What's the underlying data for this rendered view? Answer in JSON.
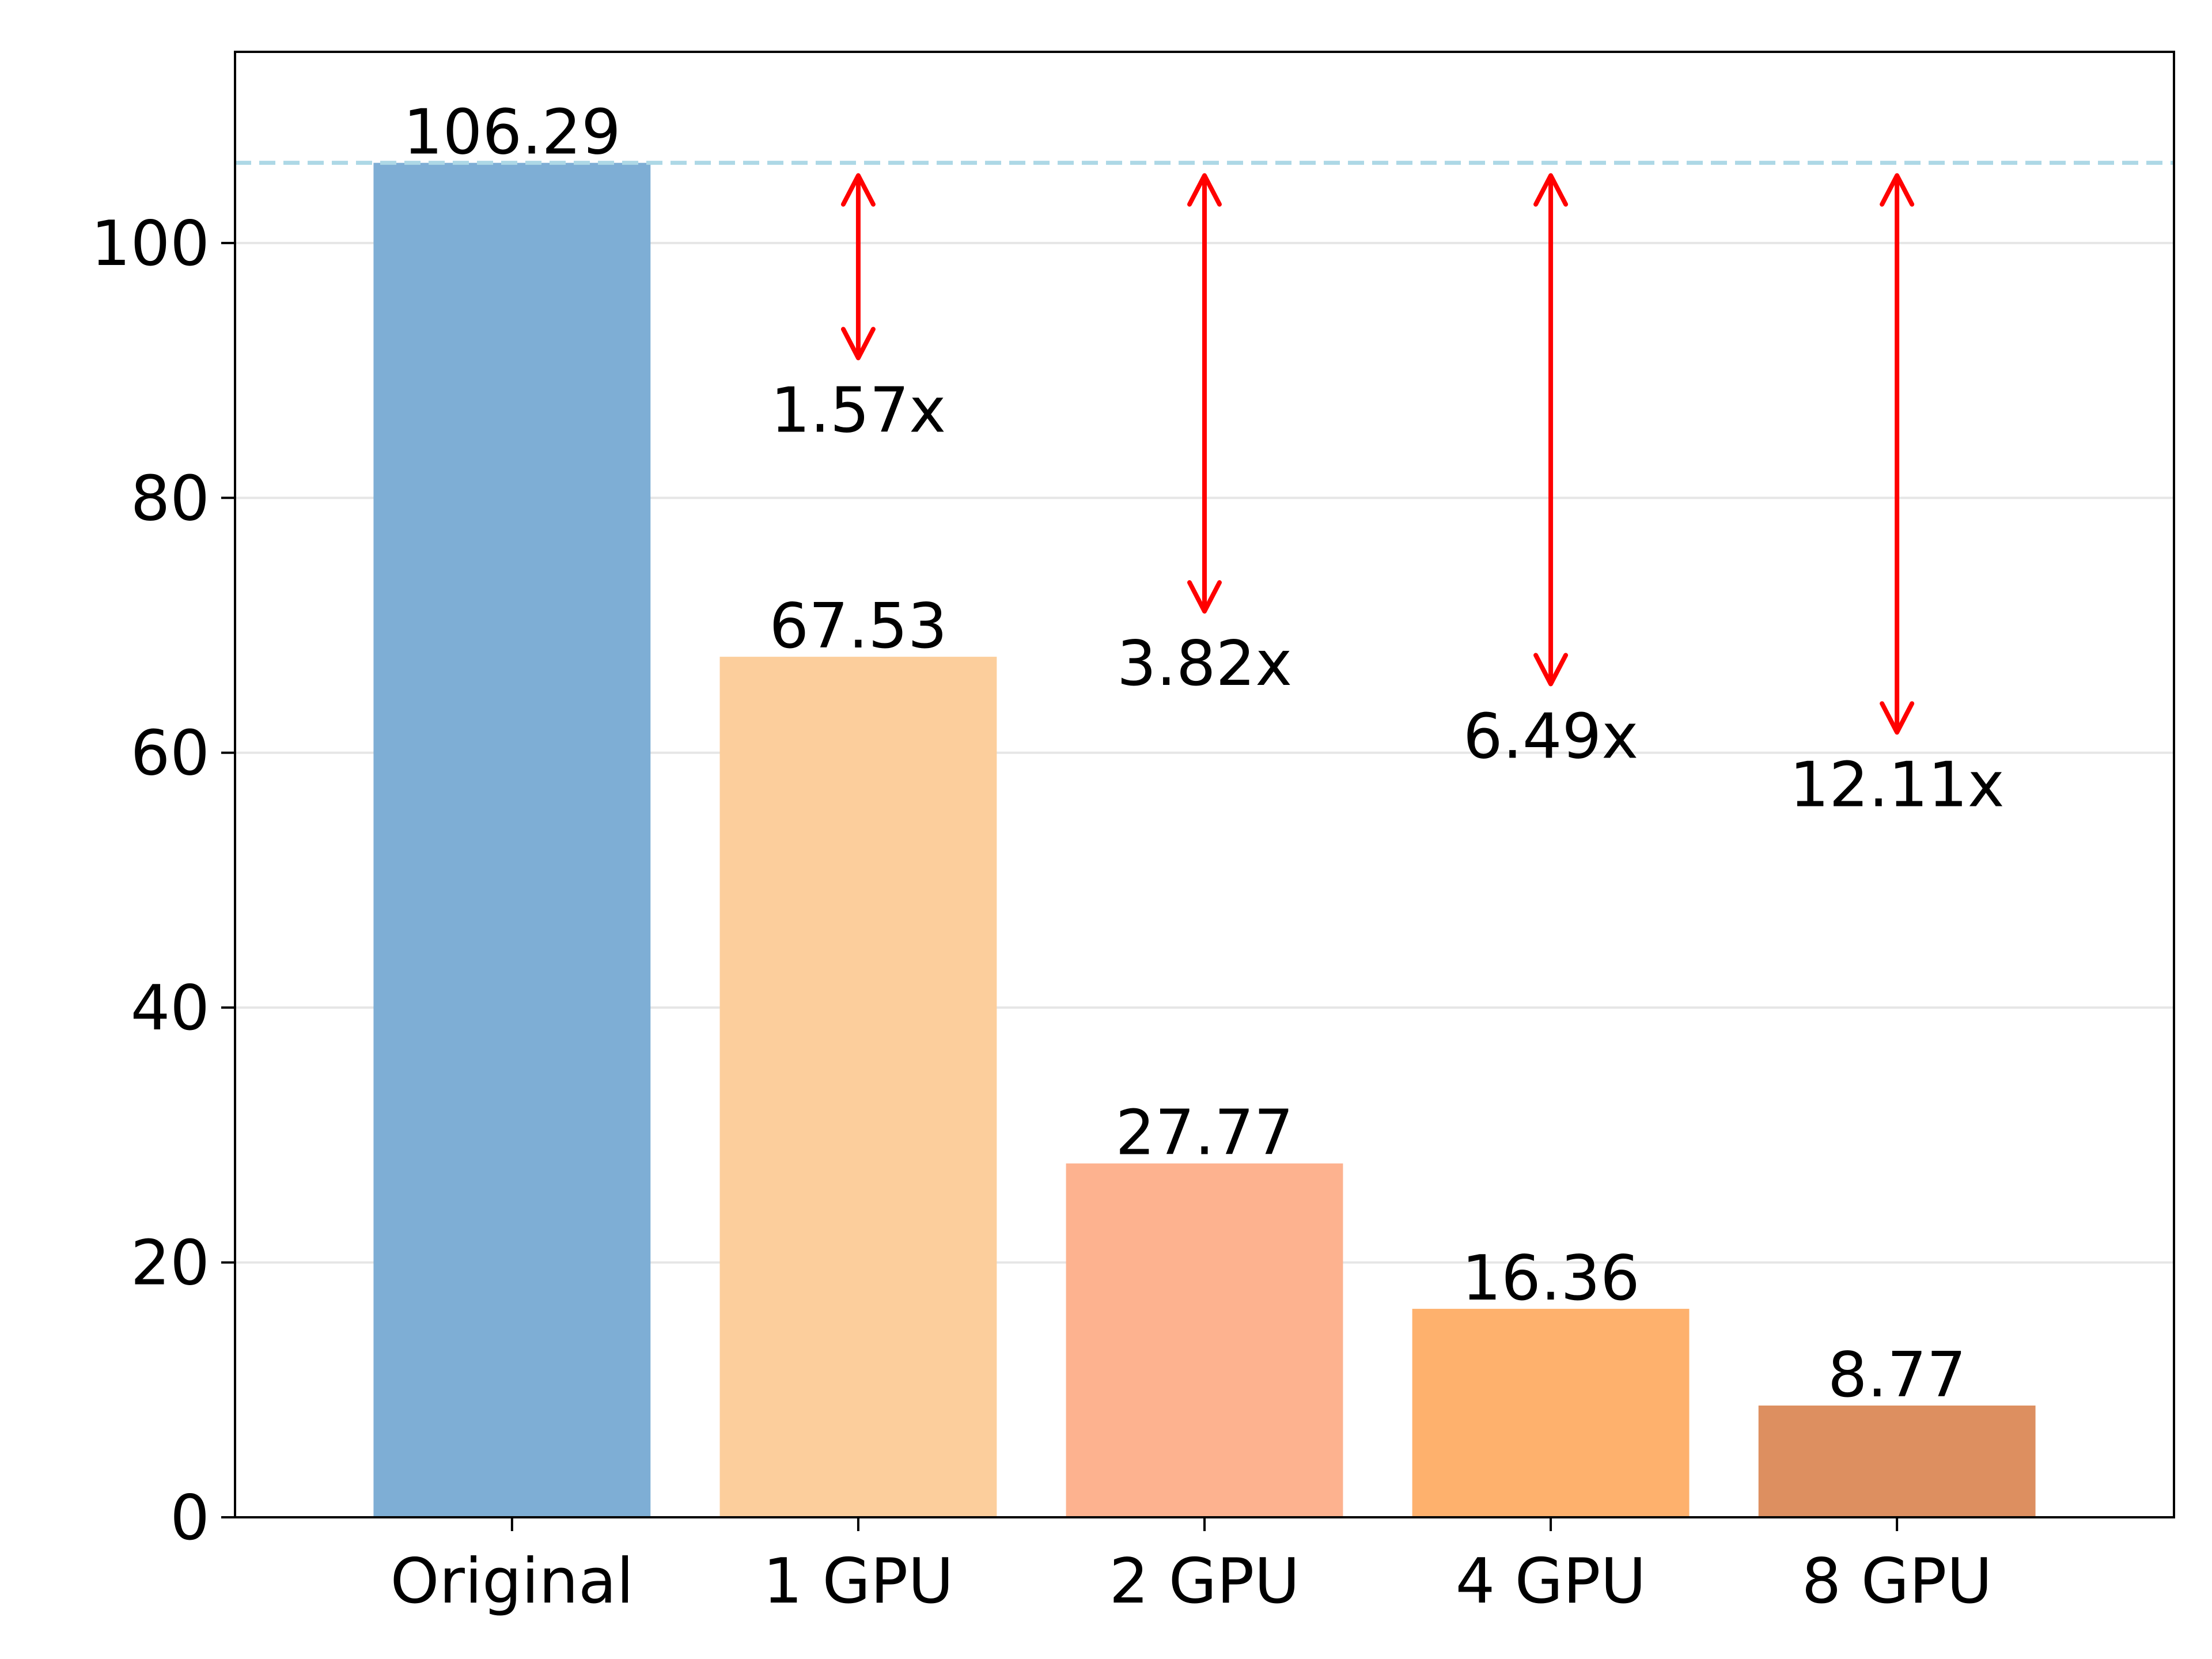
{
  "chart_data": {
    "type": "bar",
    "title": "",
    "xlabel": "",
    "ylabel": "",
    "categories": [
      "Original",
      "1 GPU",
      "2 GPU",
      "4 GPU",
      "8 GPU"
    ],
    "values": [
      106.29,
      67.53,
      27.77,
      16.36,
      8.77
    ],
    "value_labels": [
      "106.29",
      "67.53",
      "27.77",
      "16.36",
      "8.77"
    ],
    "bar_colors": [
      "#7eaed5",
      "#fcce9c",
      "#fdb28f",
      "#feb16d",
      "#dd8f60"
    ],
    "ylim": [
      0,
      115
    ],
    "yticks": [
      0,
      20,
      40,
      60,
      80,
      100
    ],
    "ytick_labels": [
      "0",
      "20",
      "40",
      "60",
      "80",
      "100"
    ],
    "grid": "horizontal",
    "reference_line": {
      "value": 106.29,
      "color": "#add8e6",
      "style": "dashed"
    },
    "speedups": [
      {
        "category": "1 GPU",
        "label": "1.57x",
        "from": 106.29,
        "to": 67.53
      },
      {
        "category": "2 GPU",
        "label": "3.82x",
        "from": 106.29,
        "to": 27.77
      },
      {
        "category": "4 GPU",
        "label": "6.49x",
        "from": 106.29,
        "to": 16.36
      },
      {
        "category": "8 GPU",
        "label": "12.11x",
        "from": 106.29,
        "to": 8.77
      }
    ],
    "arrow_color": "#ff0000"
  }
}
